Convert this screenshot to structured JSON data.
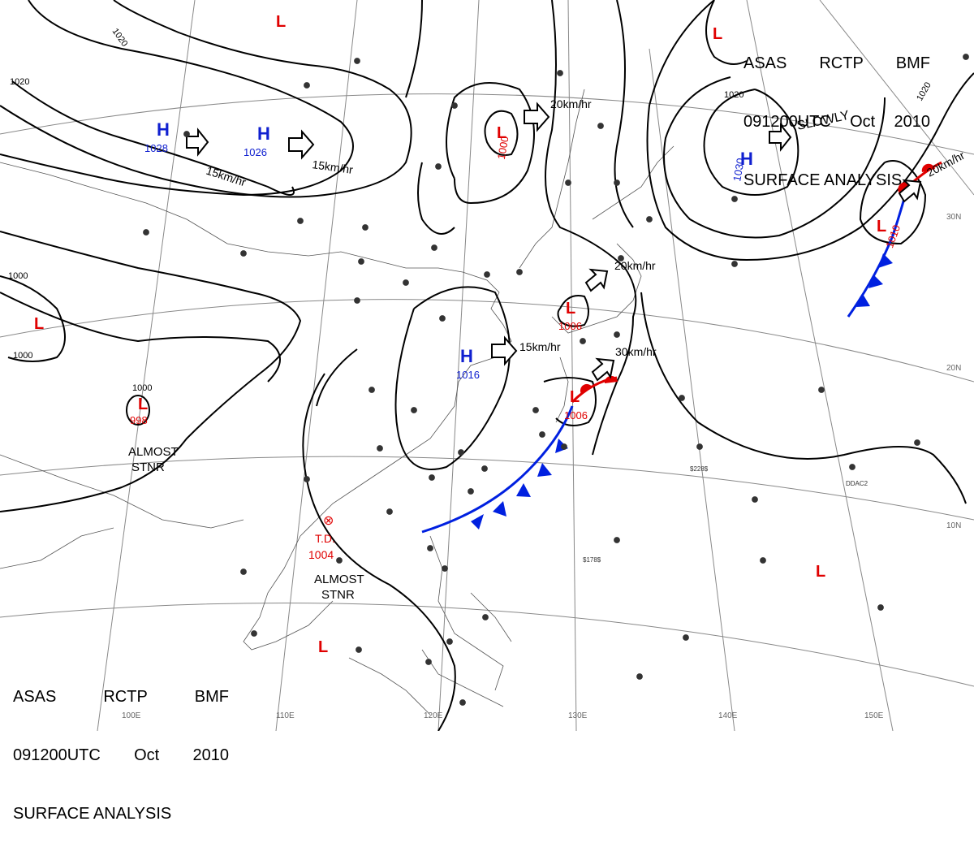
{
  "header": {
    "line1": [
      "ASAS",
      "RCTP",
      "BMF"
    ],
    "line2": [
      "091200UTC",
      "Oct",
      "2010"
    ],
    "line3": "SURFACE ANALYSIS"
  },
  "colors": {
    "high": "#1020d0",
    "low": "#e00000",
    "cold_front": "#0020e0",
    "warm_front": "#e00000",
    "isobar": "#000000"
  },
  "centers": {
    "high_1028": {
      "letter": "H",
      "value": "1028"
    },
    "high_1026": {
      "letter": "H",
      "value": "1026"
    },
    "high_1016": {
      "letter": "H",
      "value": "1016"
    },
    "high_1030": {
      "letter": "H",
      "value": "1030"
    },
    "low_1000": {
      "letter": "L",
      "value": "1000"
    },
    "low_1006_a": {
      "letter": "L",
      "value": "1006"
    },
    "low_1006_b": {
      "letter": "L",
      "value": "1006"
    },
    "low_1010": {
      "letter": "L",
      "value": "1010"
    },
    "low_998": {
      "letter": "L",
      "value": "998",
      "ring": "1000"
    },
    "td": {
      "label": "T.D.",
      "value": "1004"
    },
    "low_top": {
      "letter": "L"
    },
    "low_nw": {
      "letter": "L"
    },
    "low_west": {
      "letter": "L"
    },
    "low_south": {
      "letter": "L"
    },
    "low_east": {
      "letter": "L"
    }
  },
  "motions": {
    "m1": "15km/hr",
    "m2": "15km/hr",
    "m3": "20km/hr",
    "m4": "15km/hr",
    "m5": "20km/hr",
    "m6": "30km/hr",
    "m7": "SLOWLY",
    "m8": "20km/hr"
  },
  "notes": {
    "stnr1": [
      "ALMOST",
      "STNR"
    ],
    "stnr2": [
      "ALMOST",
      "STNR"
    ]
  },
  "isobar_labels": [
    "1020",
    "1020",
    "1000",
    "1000",
    "1020",
    "1020"
  ],
  "grid_labels": {
    "lon": [
      "100E",
      "110E",
      "120E",
      "130E",
      "140E",
      "150E"
    ],
    "lat": [
      "30N",
      "20N",
      "10N"
    ]
  },
  "station_labels": [
    "$228$",
    "$178$",
    "DDAC2"
  ]
}
